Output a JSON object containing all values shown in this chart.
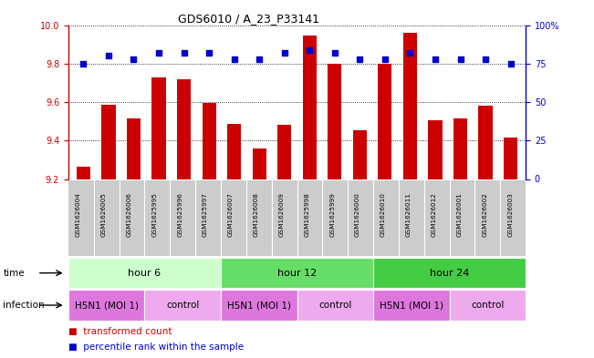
{
  "title": "GDS6010 / A_23_P33141",
  "samples": [
    "GSM1626004",
    "GSM1626005",
    "GSM1626006",
    "GSM1625995",
    "GSM1625996",
    "GSM1625997",
    "GSM1626007",
    "GSM1626008",
    "GSM1626009",
    "GSM1625998",
    "GSM1625999",
    "GSM1626000",
    "GSM1626010",
    "GSM1626011",
    "GSM1626012",
    "GSM1626001",
    "GSM1626002",
    "GSM1626003"
  ],
  "transformed_count": [
    9.265,
    9.585,
    9.515,
    9.73,
    9.72,
    9.595,
    9.485,
    9.36,
    9.48,
    9.945,
    9.8,
    9.455,
    9.8,
    9.96,
    9.505,
    9.515,
    9.58,
    9.415
  ],
  "percentile_rank": [
    75,
    80,
    78,
    82,
    82,
    82,
    78,
    78,
    82,
    84,
    82,
    78,
    78,
    82,
    78,
    78,
    78,
    75
  ],
  "ylim_left": [
    9.2,
    10.0
  ],
  "ylim_right": [
    0,
    100
  ],
  "yticks_left": [
    9.2,
    9.4,
    9.6,
    9.8,
    10.0
  ],
  "yticks_right": [
    0,
    25,
    50,
    75,
    100
  ],
  "bar_color": "#cc0000",
  "dot_color": "#0000cc",
  "left_tick_color": "#cc0000",
  "right_tick_color": "#0000cc",
  "time_groups": [
    {
      "label": "hour 6",
      "start": 0,
      "end": 6,
      "color": "#ccffcc"
    },
    {
      "label": "hour 12",
      "start": 6,
      "end": 12,
      "color": "#66dd66"
    },
    {
      "label": "hour 24",
      "start": 12,
      "end": 18,
      "color": "#44cc44"
    }
  ],
  "infection_groups": [
    {
      "label": "H5N1 (MOI 1)",
      "start": 0,
      "end": 3,
      "color": "#dd77dd"
    },
    {
      "label": "control",
      "start": 3,
      "end": 6,
      "color": "#eeaaee"
    },
    {
      "label": "H5N1 (MOI 1)",
      "start": 6,
      "end": 9,
      "color": "#dd77dd"
    },
    {
      "label": "control",
      "start": 9,
      "end": 12,
      "color": "#eeaaee"
    },
    {
      "label": "H5N1 (MOI 1)",
      "start": 12,
      "end": 15,
      "color": "#dd77dd"
    },
    {
      "label": "control",
      "start": 15,
      "end": 18,
      "color": "#eeaaee"
    }
  ],
  "fig_width": 6.51,
  "fig_height": 3.93,
  "dpi": 100
}
